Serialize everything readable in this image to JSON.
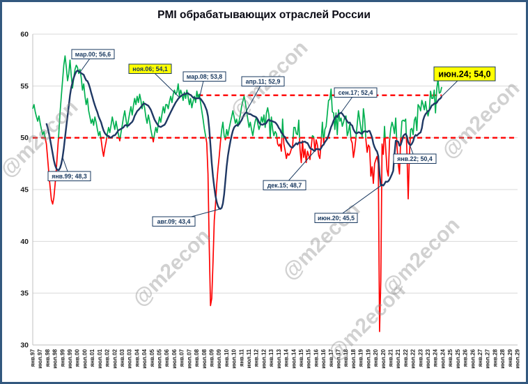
{
  "title": "PMI обрабатывающих отраслей России",
  "watermark": "@m2econ",
  "colors": {
    "frame_border": "#33587E",
    "grid": "#D9D9D9",
    "axis_line": "#BFBFBF",
    "tick_text": "#1F1F1F",
    "pmi_above": "#00B050",
    "pmi_below": "#FF0000",
    "ma_line": "#1F3864",
    "reference": "#FF0000",
    "annotation": "#17375E",
    "annotation_bg": "#FFFFFF",
    "highlight_bg": "#FFFF00",
    "watermark": "#8F8F8F"
  },
  "chart_data": {
    "type": "line",
    "title": "PMI обрабатывающих отраслей России",
    "ylim": [
      30,
      60
    ],
    "yticks": [
      30,
      35,
      40,
      45,
      50,
      55,
      60
    ],
    "grid": "horizontal",
    "x_tick_every_months": 6,
    "x_axis_months_total": 390,
    "x_tick_labels": [
      "янв.97",
      "июл.97",
      "янв.98",
      "июл.98",
      "янв.99",
      "июл.99",
      "янв.00",
      "июл.00",
      "янв.01",
      "июл.01",
      "янв.02",
      "июл.02",
      "янв.03",
      "июл.03",
      "янв.04",
      "июл.04",
      "янв.05",
      "июл.05",
      "янв.06",
      "июл.06",
      "янв.07",
      "июл.07",
      "янв.08",
      "июл.08",
      "янв.09",
      "июл.09",
      "янв.10",
      "июл.10",
      "янв.11",
      "июл.11",
      "янв.12",
      "июл.12",
      "янв.13",
      "июл.13",
      "янв.14",
      "июл.14",
      "янв.15",
      "июл.15",
      "янв.16",
      "июл.16",
      "янв.17",
      "июл.17",
      "янв.18",
      "июл.18",
      "янв.19",
      "июл.19",
      "янв.20",
      "июл.20",
      "янв.21",
      "июл.21",
      "янв.22",
      "июл.22",
      "янв.23",
      "июл.23",
      "янв.24",
      "июл.24",
      "янв.25",
      "июл.25",
      "янв.26",
      "июл.26",
      "янв.27",
      "июл.27",
      "янв.28",
      "июл.28",
      "янв.29",
      "июл.29"
    ],
    "reference_lines": [
      {
        "value": 50.0,
        "from_month": 0,
        "to_month": 390
      },
      {
        "value": 54.1,
        "from_month": 133,
        "to_month": 329
      }
    ],
    "series": [
      {
        "name": "pmi_monthly",
        "start": "янв.97",
        "color_above_50": "#00B050",
        "color_below_50": "#FF0000",
        "values": [
          52.8,
          53.2,
          52.5,
          52.0,
          51.6,
          52.1,
          51.4,
          50.8,
          50.3,
          50.6,
          50.0,
          49.4,
          48.0,
          46.5,
          45.2,
          44.0,
          43.6,
          44.2,
          45.5,
          47.0,
          48.8,
          50.5,
          52.5,
          54.0,
          55.5,
          57.0,
          57.9,
          56.8,
          55.5,
          56.2,
          57.5,
          56.0,
          54.8,
          55.8,
          56.6,
          57.0,
          56.8,
          56.2,
          56.6,
          55.8,
          54.6,
          55.2,
          54.0,
          53.2,
          53.8,
          52.6,
          52.0,
          51.4,
          51.8,
          51.2,
          52.0,
          51.5,
          50.8,
          50.2,
          50.6,
          49.8,
          48.9,
          48.2,
          49.0,
          49.6,
          50.4,
          51.0,
          50.5,
          51.2,
          52.0,
          51.4,
          50.8,
          51.6,
          50.9,
          50.3,
          49.7,
          50.5,
          51.2,
          52.0,
          52.6,
          51.8,
          51.0,
          51.7,
          52.4,
          53.0,
          52.2,
          53.1,
          53.8,
          53.2,
          54.0,
          53.4,
          54.2,
          53.6,
          52.8,
          53.5,
          52.9,
          52.0,
          51.4,
          52.2,
          51.6,
          50.8,
          50.2,
          49.6,
          50.4,
          51.0,
          50.5,
          51.3,
          52.0,
          51.5,
          52.3,
          53.0,
          52.4,
          53.2,
          53.2,
          52.8,
          53.5,
          54.0,
          53.4,
          54.2,
          54.6,
          54.2,
          54.4,
          55.2,
          54.0,
          54.6,
          54.2,
          53.6,
          54.4,
          53.8,
          54.6,
          53.9,
          53.2,
          53.8,
          52.9,
          53.5,
          54.0,
          53.4,
          54.5,
          53.8,
          54.2,
          53.4,
          52.6,
          51.8,
          50.9,
          50.2,
          49.5,
          46.5,
          39.5,
          33.8,
          34.5,
          38.0,
          42.0,
          43.5,
          45.5,
          47.0,
          48.2,
          49.6,
          50.8,
          51.5,
          50.2,
          49.8,
          50.8,
          50.2,
          50.9,
          51.5,
          52.0,
          52.6,
          52.0,
          51.4,
          51.8,
          51.1,
          51.6,
          52.2,
          53.0,
          53.5,
          54.0,
          53.4,
          52.6,
          51.8,
          51.0,
          51.5,
          50.8,
          50.2,
          51.0,
          51.6,
          52.0,
          51.4,
          50.8,
          51.2,
          52.0,
          51.5,
          52.2,
          51.0,
          52.4,
          52.9,
          52.2,
          50.0,
          52.0,
          50.8,
          50.2,
          50.6,
          50.4,
          49.4,
          49.2,
          49.4,
          48.7,
          51.8,
          49.4,
          48.8,
          48.0,
          48.5,
          48.3,
          48.5,
          48.9,
          49.1,
          51.0,
          51.0,
          50.4,
          50.3,
          51.7,
          48.9,
          47.6,
          49.7,
          48.1,
          48.9,
          47.6,
          48.7,
          48.3,
          47.9,
          49.1,
          50.2,
          50.1,
          48.7,
          49.8,
          49.3,
          48.3,
          48.0,
          49.6,
          51.5,
          49.5,
          50.8,
          51.1,
          52.4,
          53.6,
          53.7,
          54.7,
          52.5,
          52.4,
          50.8,
          52.4,
          50.3,
          52.7,
          51.6,
          51.9,
          51.1,
          51.5,
          52.0,
          52.1,
          50.2,
          50.6,
          51.3,
          49.8,
          49.5,
          48.1,
          48.9,
          50.0,
          51.3,
          52.6,
          51.7,
          50.9,
          50.1,
          52.8,
          51.8,
          49.8,
          48.6,
          49.3,
          49.1,
          46.3,
          47.2,
          45.6,
          47.5,
          47.9,
          48.2,
          47.5,
          31.3,
          36.2,
          49.4,
          48.4,
          51.1,
          48.9,
          46.9,
          46.3,
          49.7,
          50.9,
          51.5,
          51.1,
          50.4,
          51.9,
          49.2,
          47.5,
          46.5,
          49.8,
          51.6,
          51.7,
          51.6,
          51.8,
          48.6,
          44.1,
          48.2,
          50.8,
          50.9,
          50.3,
          51.7,
          52.0,
          50.7,
          53.2,
          53.0,
          52.6,
          53.6,
          53.2,
          52.7,
          53.5,
          52.6,
          52.1,
          52.7,
          54.5,
          53.8,
          53.8,
          54.6,
          52.4,
          54.7,
          55.7,
          54.3,
          54.4,
          54.9
        ]
      },
      {
        "name": "pmi_12m_moving_average",
        "derived": "ma12",
        "color": "#1F3864"
      }
    ],
    "annotations": [
      {
        "label": "мар.00; 56,6",
        "month": 38,
        "value": 56.6,
        "box": [
          100,
          68
        ],
        "highlight": false,
        "big": false
      },
      {
        "label": "ноя.06; 54,1",
        "month": 118,
        "value": 54.1,
        "box": [
          182,
          89
        ],
        "highlight": true,
        "big": false
      },
      {
        "label": "мар.08; 53,8",
        "month": 134,
        "value": 53.8,
        "box": [
          260,
          100
        ],
        "highlight": false,
        "big": false
      },
      {
        "label": "апр.11; 52,9",
        "month": 171,
        "value": 52.9,
        "box": [
          344,
          107
        ],
        "highlight": false,
        "big": false
      },
      {
        "label": "сен.17; 52,4",
        "month": 248,
        "value": 52.4,
        "box": [
          477,
          123
        ],
        "highlight": false,
        "big": false
      },
      {
        "label": "июн.24; 54,0",
        "month": 329,
        "value": 54.0,
        "box": [
          620,
          93
        ],
        "highlight": true,
        "big": true
      },
      {
        "label": "янв.99; 48,3",
        "month": 24,
        "value": 48.3,
        "box": [
          66,
          243
        ],
        "highlight": false,
        "big": false
      },
      {
        "label": "авг.09; 43,4",
        "month": 151,
        "value": 43.4,
        "box": [
          216,
          308
        ],
        "highlight": false,
        "big": false
      },
      {
        "label": "дек.15; 48,7",
        "month": 227,
        "value": 48.7,
        "box": [
          375,
          256
        ],
        "highlight": false,
        "big": false
      },
      {
        "label": "июн.20; 45,5",
        "month": 281,
        "value": 45.5,
        "box": [
          449,
          303
        ],
        "highlight": false,
        "big": false
      },
      {
        "label": "янв.22; 50,4",
        "month": 300,
        "value": 50.4,
        "box": [
          562,
          218
        ],
        "highlight": false,
        "big": false
      }
    ]
  }
}
